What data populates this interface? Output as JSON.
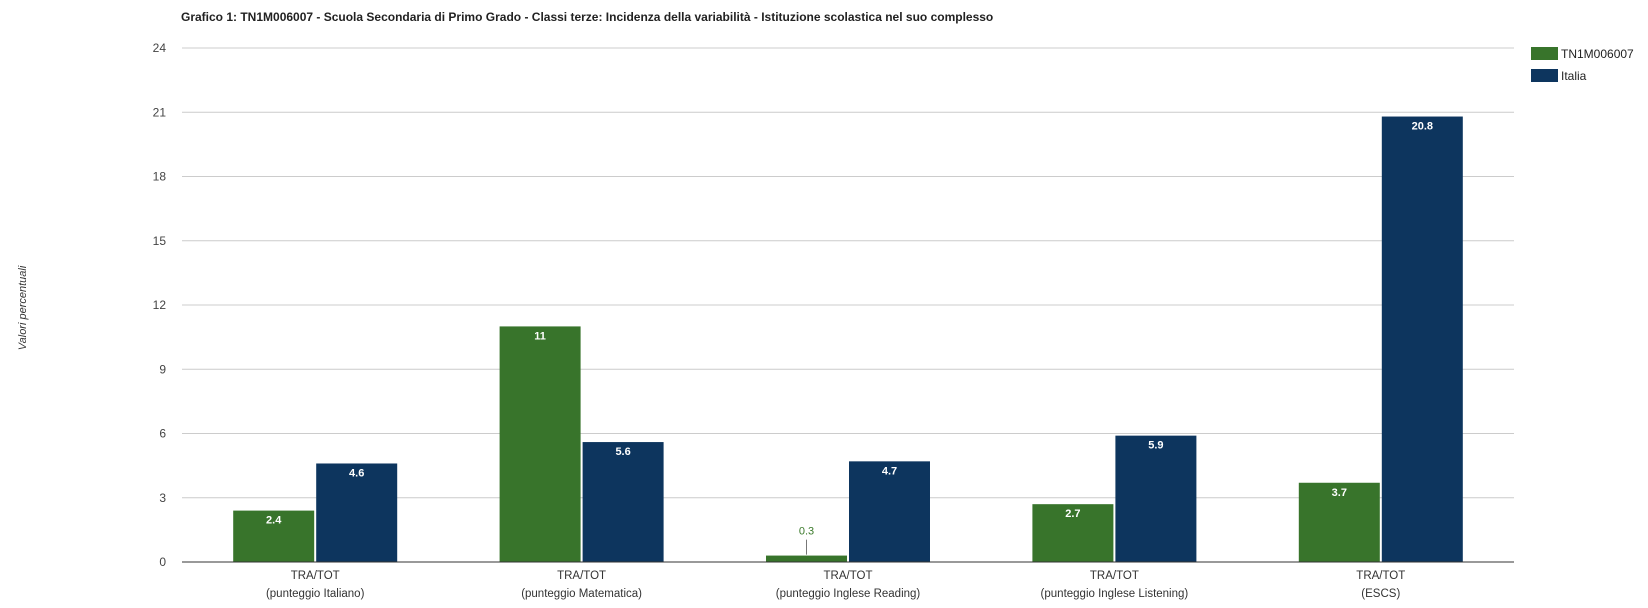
{
  "chart_data": {
    "type": "bar",
    "title": "Grafico 1: TN1M006007 - Scuola Secondaria di Primo Grado - Classi terze: Incidenza della variabilità - Istituzione scolastica nel suo complesso",
    "xlabel": "",
    "ylabel": "Valori percentuali",
    "ylim": [
      0,
      24
    ],
    "yticks": [
      0,
      3,
      6,
      9,
      12,
      15,
      18,
      21,
      24
    ],
    "grid": true,
    "legend_position": "top-right",
    "categories": [
      [
        "TRA/TOT",
        "(punteggio Italiano)"
      ],
      [
        "TRA/TOT",
        "(punteggio Matematica)"
      ],
      [
        "TRA/TOT",
        "(punteggio Inglese Reading)"
      ],
      [
        "TRA/TOT",
        "(punteggio Inglese Listening)"
      ],
      [
        "TRA/TOT",
        "(ESCS)"
      ]
    ],
    "series": [
      {
        "name": "TN1M006007",
        "color": "#38742b",
        "values": [
          2.4,
          11,
          0.3,
          2.7,
          3.7
        ]
      },
      {
        "name": "Italia",
        "color": "#0d355e",
        "values": [
          4.6,
          5.6,
          4.7,
          5.9,
          20.8
        ]
      }
    ]
  }
}
